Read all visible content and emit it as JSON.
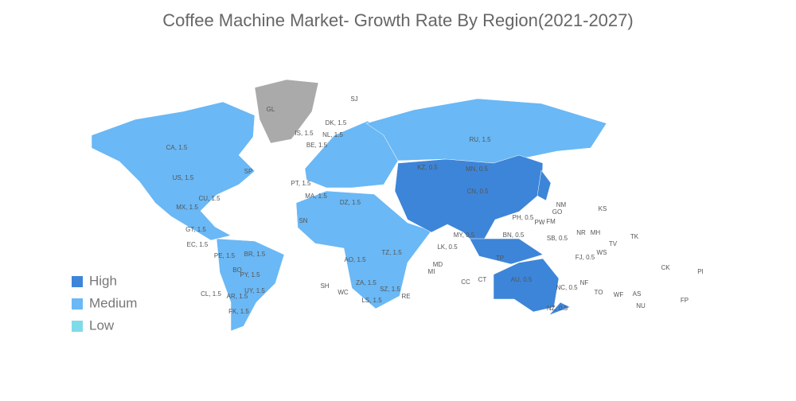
{
  "title": "Coffee Machine Market- Growth Rate By Region(2021-2027)",
  "legend": [
    {
      "name": "High",
      "color": "#3d85d8"
    },
    {
      "name": "Medium",
      "color": "#6ab8f5"
    },
    {
      "name": "Low",
      "color": "#7fdbe9"
    }
  ],
  "no_data_color": "#aaaaaa",
  "region_labels": [
    "GL",
    "SJ",
    "CA, 1.5",
    "US, 1.5",
    "SP",
    "MX, 1.5",
    "CU, 1.5",
    "GT, 1.5",
    "EC, 1.5",
    "PE, 1.5",
    "BR, 1.5",
    "BO",
    "PY, 1.5",
    "CL, 1.5",
    "AR, 1.5",
    "UY, 1.5",
    "FK, 1.5",
    "IS, 1.5",
    "DK, 1.5",
    "NL, 1.5",
    "BE, 1.5",
    "PT, 1.5",
    "MA, 1.5",
    "DZ, 1.5",
    "RU, 1.5",
    "KZ, 0.5",
    "MN, 0.5",
    "CN, 0.5",
    "PH, 0.5",
    "MY, 0.5",
    "BN, 0.5",
    "SB, 0.5",
    "PW",
    "FM",
    "GO",
    "NM",
    "KS",
    "NR",
    "MH",
    "TV",
    "TK",
    "WS",
    "FJ, 0.5",
    "CK",
    "PI",
    "NC, 0.5",
    "AU, 0.5",
    "NZ, 0.5",
    "TO",
    "WF",
    "AS",
    "NU",
    "FP",
    "NF",
    "CC",
    "CT",
    "LK, 0.5",
    "MD",
    "MI",
    "RE",
    "SH",
    "WC",
    "LS, 1.5",
    "ZA, 1.5",
    "SZ, 1.5",
    "AO, 1.5",
    "TZ, 1.5",
    "SN",
    "TP"
  ]
}
